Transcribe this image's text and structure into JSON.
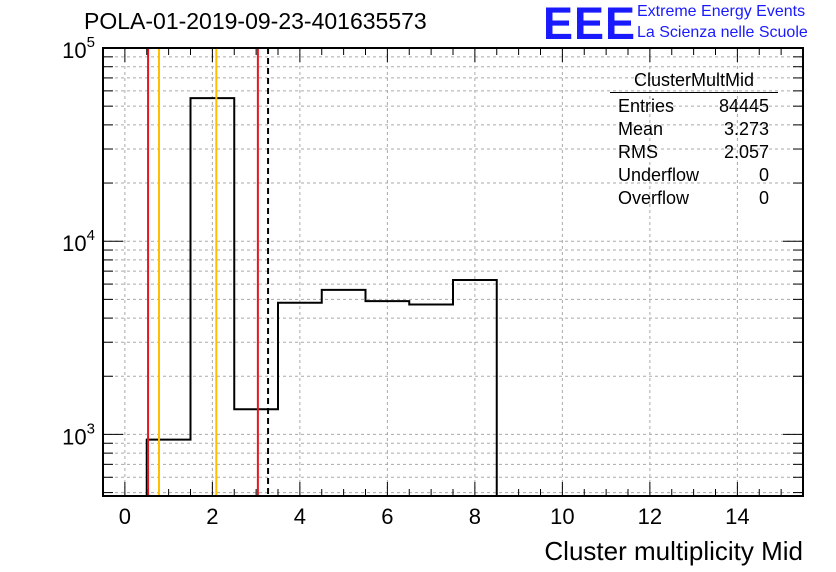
{
  "title": "POLA-01-2019-09-23-401635573",
  "logo": {
    "mark": "EEE",
    "line1": "Extreme Energy Events",
    "line2": "La Scienza nelle Scuole",
    "color": "#1a1aff"
  },
  "stats": {
    "name": "ClusterMultMid",
    "rows": [
      {
        "label": "Entries",
        "value": "84445"
      },
      {
        "label": "Mean",
        "value": "3.273"
      },
      {
        "label": "RMS",
        "value": "2.057"
      },
      {
        "label": "Underflow",
        "value": "0"
      },
      {
        "label": "Overflow",
        "value": "0"
      }
    ]
  },
  "chart_data": {
    "type": "bar",
    "histogram": true,
    "xlabel": "Cluster multiplicity Mid",
    "ylabel": "",
    "xlim": [
      -0.5,
      15.5
    ],
    "ylim": [
      480,
      100000
    ],
    "log_y": true,
    "grid": true,
    "x_ticks": [
      0,
      2,
      4,
      6,
      8,
      10,
      12,
      14
    ],
    "y_ticks": [
      {
        "value": 1000,
        "base": "10",
        "exp": "3"
      },
      {
        "value": 10000,
        "base": "10",
        "exp": "4"
      },
      {
        "value": 100000,
        "base": "10",
        "exp": "5"
      }
    ],
    "bins": [
      {
        "x": 1,
        "value": 940
      },
      {
        "x": 2,
        "value": 55000
      },
      {
        "x": 3,
        "value": 1350
      },
      {
        "x": 4,
        "value": 4800
      },
      {
        "x": 5,
        "value": 5600
      },
      {
        "x": 6,
        "value": 4900
      },
      {
        "x": 7,
        "value": 4700
      },
      {
        "x": 8,
        "value": 6300
      }
    ],
    "bin_width": 1,
    "vlines": [
      {
        "x": 0.53,
        "color": "#e8141e",
        "style": "solid"
      },
      {
        "x": 0.78,
        "color": "#ffbf00",
        "style": "solid"
      },
      {
        "x": 2.09,
        "color": "#ffbf00",
        "style": "solid"
      },
      {
        "x": 3.04,
        "color": "#e8141e",
        "style": "solid"
      },
      {
        "x": 3.273,
        "color": "#000000",
        "style": "dashed"
      }
    ]
  }
}
